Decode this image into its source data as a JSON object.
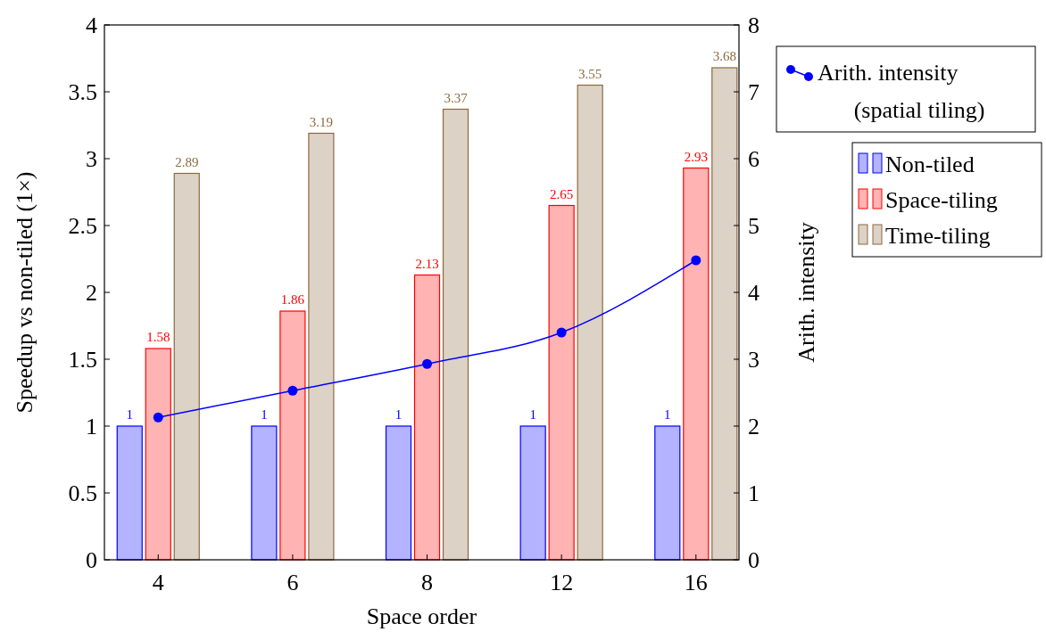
{
  "chart_data": {
    "type": "bar",
    "xlabel": "Space order",
    "ylabel": "Speedup vs non-tiled (1×)",
    "y2label": "Arith. intensity",
    "categories": [
      "4",
      "6",
      "8",
      "12",
      "16"
    ],
    "series": [
      {
        "name": "Non-tiled",
        "color": "#0000ff",
        "values": [
          1,
          1,
          1,
          1,
          1
        ],
        "value_labels": [
          "1",
          "1",
          "1",
          "1",
          "1"
        ]
      },
      {
        "name": "Space-tiling",
        "color": "#ff0000",
        "values": [
          1.58,
          1.86,
          2.13,
          2.65,
          2.93
        ],
        "value_labels": [
          "1.58",
          "1.86",
          "2.13",
          "2.65",
          "2.93"
        ]
      },
      {
        "name": "Time-tiling",
        "color": "#8b6a3e",
        "values": [
          2.89,
          3.19,
          3.37,
          3.55,
          3.68
        ],
        "value_labels": [
          "2.89",
          "3.19",
          "3.37",
          "3.55",
          "3.68"
        ]
      },
      {
        "name": "Arith. intensity (spatial tiling)",
        "type": "line",
        "axis": "y2",
        "color": "#0000ff",
        "values": [
          2.13,
          2.53,
          2.93,
          3.4,
          4.48
        ]
      }
    ],
    "ylim": [
      0,
      4
    ],
    "yticks": [
      0,
      {
        "value": 0.5,
        "label": "0.5"
      },
      1,
      {
        "value": 1.5,
        "label": "1.5"
      },
      2,
      {
        "value": 2.5,
        "label": "2.5"
      },
      3,
      {
        "value": 3.5,
        "label": "3.5"
      },
      4
    ],
    "y2lim": [
      0,
      8
    ],
    "y2ticks": [
      0,
      1,
      2,
      3,
      4,
      5,
      6,
      7,
      8
    ],
    "marker": "circle",
    "legend": "right",
    "grid": false
  }
}
